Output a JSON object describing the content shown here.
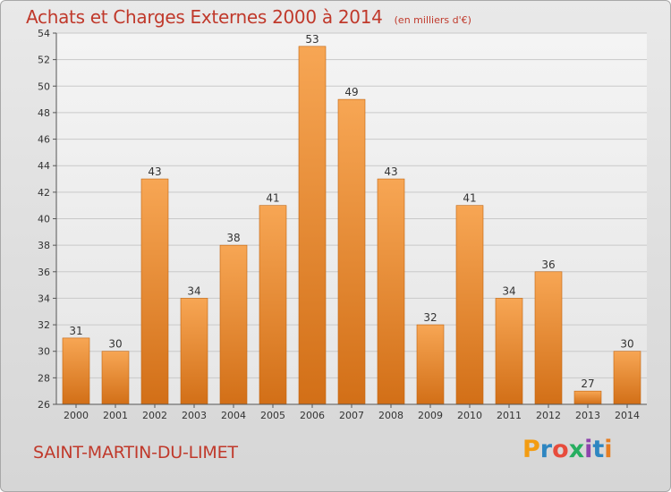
{
  "header": {
    "title": "Achats et Charges Externes 2000 à 2014",
    "subtitle": "(en milliers d'€)"
  },
  "footer": {
    "location": "SAINT-MARTIN-DU-LIMET",
    "logo_text": "Proxiti",
    "logo_colors": [
      "#f39c12",
      "#2e86c1",
      "#e74c3c",
      "#27ae60",
      "#8e44ad",
      "#2e86c1",
      "#e67e22"
    ]
  },
  "colors": {
    "bar": "#f0922f",
    "bar_light": "#f7ad5c",
    "bar_dark": "#d06a10",
    "text": "#c0392b"
  },
  "chart_data": {
    "type": "bar",
    "title": "Achats et Charges Externes 2000 à 2014",
    "subtitle": "(en milliers d'€)",
    "categories": [
      "2000",
      "2001",
      "2002",
      "2003",
      "2004",
      "2005",
      "2006",
      "2007",
      "2008",
      "2009",
      "2010",
      "2011",
      "2012",
      "2013",
      "2014"
    ],
    "values": [
      31,
      30,
      43,
      34,
      38,
      41,
      53,
      49,
      43,
      32,
      41,
      34,
      36,
      27,
      30
    ],
    "ylim": [
      26,
      54
    ],
    "yticks": [
      26,
      28,
      30,
      32,
      34,
      36,
      38,
      40,
      42,
      44,
      46,
      48,
      50,
      52,
      54
    ],
    "grid": true,
    "data_labels": true
  }
}
